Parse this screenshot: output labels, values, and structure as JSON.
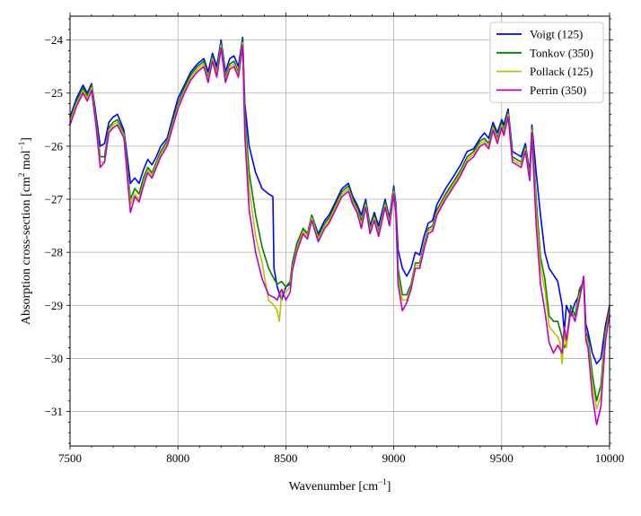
{
  "chart_data": {
    "type": "line",
    "xlabel": "Wavenumber [cm$^{-1}$]",
    "xlabel_parts": {
      "text": "Wavenumber [cm",
      "sup": "−1",
      "tail": "]"
    },
    "ylabel_parts": {
      "text": "Absorption cross-section [cm",
      "sup1": "2",
      "mid": " mol",
      "sup2": "−1",
      "tail": "]"
    },
    "xlim": [
      7500,
      10000
    ],
    "ylim": [
      -31.65,
      -23.55
    ],
    "xticks": [
      7500,
      8000,
      8500,
      9000,
      9500,
      10000
    ],
    "xtick_labels": [
      "7500",
      "8000",
      "8500",
      "9000",
      "9500",
      "10000"
    ],
    "yticks": [
      -31,
      -30,
      -29,
      -28,
      -27,
      -26,
      -25,
      -24
    ],
    "ytick_labels": [
      "−31",
      "−30",
      "−29",
      "−28",
      "−27",
      "−26",
      "−25",
      "−24"
    ],
    "grid": true,
    "legend_position": "top-right",
    "series": [
      {
        "name": "Voigt (125)",
        "color": "#0000ff",
        "x": [
          7500,
          7530,
          7560,
          7580,
          7600,
          7620,
          7640,
          7660,
          7680,
          7700,
          7720,
          7750,
          7780,
          7800,
          7820,
          7840,
          7860,
          7880,
          7900,
          7920,
          7950,
          8000,
          8030,
          8060,
          8090,
          8120,
          8140,
          8160,
          8180,
          8200,
          8220,
          8240,
          8260,
          8280,
          8300,
          8310,
          8330,
          8360,
          8390,
          8420,
          8440,
          8445,
          8460,
          8480,
          8500,
          8520,
          8530,
          8550,
          8580,
          8600,
          8620,
          8650,
          8680,
          8700,
          8730,
          8760,
          8790,
          8810,
          8830,
          8850,
          8870,
          8890,
          8910,
          8930,
          8960,
          8980,
          9000,
          9010,
          9020,
          9040,
          9060,
          9080,
          9100,
          9120,
          9140,
          9160,
          9180,
          9200,
          9240,
          9280,
          9310,
          9340,
          9370,
          9400,
          9420,
          9440,
          9460,
          9480,
          9500,
          9510,
          9530,
          9550,
          9570,
          9590,
          9610,
          9630,
          9640,
          9660,
          9680,
          9700,
          9720,
          9760,
          9780,
          9790,
          9800,
          9820,
          9840,
          9860,
          9880,
          9890,
          9900,
          9920,
          9940,
          9960,
          9980,
          10000
        ],
        "y": [
          -25.45,
          -25.1,
          -24.85,
          -25.0,
          -24.82,
          -25.4,
          -26.0,
          -25.95,
          -25.55,
          -25.45,
          -25.4,
          -25.7,
          -26.7,
          -26.6,
          -26.7,
          -26.45,
          -26.25,
          -26.35,
          -26.2,
          -26.0,
          -25.85,
          -25.1,
          -24.85,
          -24.6,
          -24.45,
          -24.35,
          -24.6,
          -24.25,
          -24.5,
          -24.0,
          -24.6,
          -24.35,
          -24.3,
          -24.5,
          -23.95,
          -25.2,
          -26.0,
          -26.5,
          -26.8,
          -26.9,
          -26.95,
          -28.3,
          -28.65,
          -28.9,
          -28.65,
          -28.6,
          -28.25,
          -27.85,
          -27.55,
          -27.65,
          -27.3,
          -27.65,
          -27.4,
          -27.3,
          -27.05,
          -26.8,
          -26.7,
          -26.95,
          -27.1,
          -27.3,
          -27.0,
          -27.5,
          -27.25,
          -27.5,
          -27.0,
          -27.35,
          -26.75,
          -27.1,
          -27.95,
          -28.3,
          -28.45,
          -28.3,
          -28.0,
          -28.05,
          -27.7,
          -27.45,
          -27.4,
          -27.1,
          -26.8,
          -26.55,
          -26.35,
          -26.1,
          -26.05,
          -25.85,
          -25.75,
          -25.85,
          -25.55,
          -25.75,
          -25.5,
          -25.6,
          -25.3,
          -26.1,
          -26.15,
          -26.2,
          -25.95,
          -26.5,
          -25.6,
          -26.5,
          -27.3,
          -28.0,
          -28.3,
          -28.55,
          -29.0,
          -29.5,
          -29.0,
          -29.2,
          -28.95,
          -28.8,
          -28.5,
          -29.35,
          -29.5,
          -29.9,
          -30.1,
          -30.0,
          -29.4,
          -29.0
        ]
      },
      {
        "name": "Tonkov (350)",
        "color": "#008000",
        "x": [
          7500,
          7530,
          7560,
          7580,
          7600,
          7620,
          7640,
          7660,
          7680,
          7700,
          7720,
          7750,
          7780,
          7800,
          7820,
          7840,
          7860,
          7880,
          7900,
          7920,
          7950,
          8000,
          8030,
          8060,
          8090,
          8120,
          8140,
          8160,
          8180,
          8200,
          8220,
          8240,
          8260,
          8280,
          8300,
          8310,
          8330,
          8360,
          8390,
          8420,
          8445,
          8460,
          8480,
          8500,
          8520,
          8530,
          8550,
          8580,
          8600,
          8620,
          8650,
          8680,
          8700,
          8730,
          8760,
          8790,
          8810,
          8830,
          8850,
          8870,
          8890,
          8910,
          8930,
          8960,
          8980,
          9000,
          9010,
          9020,
          9040,
          9060,
          9080,
          9100,
          9120,
          9140,
          9160,
          9180,
          9200,
          9240,
          9280,
          9310,
          9340,
          9370,
          9400,
          9420,
          9440,
          9460,
          9480,
          9500,
          9510,
          9530,
          9550,
          9570,
          9590,
          9610,
          9630,
          9640,
          9660,
          9680,
          9700,
          9720,
          9740,
          9760,
          9780,
          9790,
          9800,
          9820,
          9840,
          9860,
          9880,
          9890,
          9900,
          9920,
          9940,
          9960,
          9980,
          10000
        ],
        "y": [
          -25.5,
          -25.15,
          -24.9,
          -25.05,
          -24.85,
          -25.5,
          -26.2,
          -26.2,
          -25.65,
          -25.55,
          -25.5,
          -25.75,
          -27.0,
          -26.8,
          -26.9,
          -26.6,
          -26.4,
          -26.5,
          -26.3,
          -26.1,
          -25.9,
          -25.2,
          -24.9,
          -24.65,
          -24.5,
          -24.4,
          -24.7,
          -24.3,
          -24.6,
          -24.05,
          -24.7,
          -24.45,
          -24.4,
          -24.6,
          -24.0,
          -25.4,
          -26.5,
          -27.3,
          -27.9,
          -28.3,
          -28.5,
          -28.6,
          -28.55,
          -28.65,
          -28.55,
          -28.2,
          -27.85,
          -27.55,
          -27.65,
          -27.3,
          -27.7,
          -27.45,
          -27.35,
          -27.1,
          -26.85,
          -26.75,
          -27.0,
          -27.15,
          -27.4,
          -27.05,
          -27.55,
          -27.3,
          -27.6,
          -27.05,
          -27.4,
          -26.8,
          -27.2,
          -28.3,
          -28.8,
          -28.8,
          -28.6,
          -28.2,
          -28.2,
          -27.85,
          -27.55,
          -27.5,
          -27.2,
          -26.9,
          -26.65,
          -26.45,
          -26.2,
          -26.1,
          -25.9,
          -25.85,
          -25.95,
          -25.6,
          -25.85,
          -25.55,
          -25.7,
          -25.35,
          -26.2,
          -26.25,
          -26.3,
          -26.0,
          -26.55,
          -25.65,
          -27.0,
          -28.1,
          -28.5,
          -29.2,
          -29.3,
          -29.3,
          -29.6,
          -29.8,
          -29.7,
          -29.0,
          -29.2,
          -28.7,
          -28.55,
          -29.5,
          -29.6,
          -30.3,
          -30.8,
          -30.5,
          -29.5,
          -29.05
        ]
      },
      {
        "name": "Pollack (125)",
        "color": "#bfbf00",
        "x": [
          7500,
          7530,
          7560,
          7580,
          7600,
          7620,
          7640,
          7660,
          7680,
          7700,
          7720,
          7750,
          7780,
          7800,
          7820,
          7840,
          7860,
          7880,
          7900,
          7920,
          7950,
          8000,
          8030,
          8060,
          8090,
          8120,
          8140,
          8160,
          8180,
          8200,
          8220,
          8240,
          8260,
          8280,
          8300,
          8310,
          8330,
          8360,
          8390,
          8420,
          8445,
          8460,
          8470,
          8480,
          8490,
          8500,
          8520,
          8530,
          8550,
          8580,
          8600,
          8620,
          8650,
          8680,
          8700,
          8730,
          8760,
          8790,
          8810,
          8830,
          8850,
          8870,
          8890,
          8910,
          8930,
          8960,
          8980,
          9000,
          9010,
          9020,
          9040,
          9060,
          9080,
          9100,
          9120,
          9140,
          9160,
          9180,
          9200,
          9240,
          9280,
          9310,
          9340,
          9370,
          9400,
          9420,
          9440,
          9460,
          9480,
          9500,
          9510,
          9530,
          9550,
          9570,
          9590,
          9610,
          9630,
          9640,
          9660,
          9680,
          9700,
          9720,
          9740,
          9760,
          9770,
          9780,
          9790,
          9800,
          9820,
          9840,
          9860,
          9880,
          9890,
          9900,
          9920,
          9940,
          9960,
          9980,
          10000
        ],
        "y": [
          -25.55,
          -25.2,
          -24.95,
          -25.1,
          -24.9,
          -25.55,
          -26.3,
          -26.3,
          -25.7,
          -25.6,
          -25.55,
          -25.8,
          -27.1,
          -26.9,
          -27.0,
          -26.7,
          -26.45,
          -26.55,
          -26.35,
          -26.15,
          -25.95,
          -25.25,
          -24.95,
          -24.7,
          -24.55,
          -24.45,
          -24.75,
          -24.35,
          -24.65,
          -24.1,
          -24.75,
          -24.5,
          -24.45,
          -24.65,
          -24.05,
          -25.6,
          -26.8,
          -27.7,
          -28.2,
          -28.9,
          -29.0,
          -29.1,
          -29.3,
          -28.8,
          -28.7,
          -28.75,
          -28.65,
          -28.3,
          -27.95,
          -27.6,
          -27.7,
          -27.35,
          -27.75,
          -27.5,
          -27.4,
          -27.15,
          -26.9,
          -26.8,
          -27.05,
          -27.2,
          -27.5,
          -27.1,
          -27.6,
          -27.35,
          -27.65,
          -27.1,
          -27.45,
          -26.85,
          -27.25,
          -28.5,
          -28.9,
          -28.9,
          -28.65,
          -28.25,
          -28.25,
          -27.9,
          -27.6,
          -27.55,
          -27.25,
          -26.95,
          -26.7,
          -26.5,
          -26.25,
          -26.15,
          -25.95,
          -25.9,
          -26.0,
          -25.65,
          -25.9,
          -25.6,
          -25.75,
          -25.4,
          -26.25,
          -26.3,
          -26.35,
          -26.05,
          -26.6,
          -25.7,
          -27.2,
          -28.3,
          -28.7,
          -29.4,
          -29.5,
          -29.6,
          -29.7,
          -30.1,
          -29.5,
          -29.8,
          -29.1,
          -29.3,
          -28.8,
          -28.6,
          -29.6,
          -29.7,
          -30.5,
          -30.95,
          -30.7,
          -29.6,
          -29.1
        ]
      },
      {
        "name": "Perrin (350)",
        "color": "#bf00bf",
        "x": [
          7500,
          7530,
          7560,
          7580,
          7600,
          7620,
          7640,
          7660,
          7680,
          7700,
          7720,
          7750,
          7780,
          7800,
          7820,
          7840,
          7860,
          7880,
          7900,
          7920,
          7950,
          8000,
          8030,
          8060,
          8090,
          8120,
          8140,
          8160,
          8180,
          8200,
          8220,
          8240,
          8260,
          8280,
          8300,
          8310,
          8330,
          8360,
          8390,
          8420,
          8445,
          8460,
          8480,
          8500,
          8520,
          8530,
          8550,
          8580,
          8600,
          8620,
          8650,
          8680,
          8700,
          8730,
          8760,
          8790,
          8810,
          8830,
          8850,
          8870,
          8890,
          8910,
          8930,
          8960,
          8980,
          9000,
          9010,
          9020,
          9040,
          9060,
          9080,
          9100,
          9120,
          9140,
          9160,
          9180,
          9200,
          9240,
          9280,
          9310,
          9340,
          9370,
          9400,
          9420,
          9440,
          9460,
          9480,
          9500,
          9510,
          9530,
          9550,
          9570,
          9590,
          9610,
          9630,
          9640,
          9660,
          9680,
          9700,
          9720,
          9740,
          9760,
          9780,
          9790,
          9800,
          9820,
          9840,
          9860,
          9880,
          9890,
          9900,
          9920,
          9940,
          9960,
          9980,
          10000
        ],
        "y": [
          -25.6,
          -25.25,
          -25.0,
          -25.15,
          -24.95,
          -25.6,
          -26.4,
          -26.3,
          -25.75,
          -25.65,
          -25.6,
          -25.85,
          -27.25,
          -26.95,
          -27.05,
          -26.75,
          -26.5,
          -26.6,
          -26.4,
          -26.2,
          -26.0,
          -25.3,
          -25.0,
          -24.75,
          -24.6,
          -24.5,
          -24.8,
          -24.4,
          -24.7,
          -24.15,
          -24.8,
          -24.55,
          -24.5,
          -24.7,
          -24.1,
          -25.8,
          -27.2,
          -28.0,
          -28.5,
          -28.8,
          -28.85,
          -28.9,
          -28.7,
          -28.9,
          -28.75,
          -28.35,
          -28.0,
          -27.65,
          -27.75,
          -27.4,
          -27.8,
          -27.55,
          -27.45,
          -27.2,
          -26.95,
          -26.85,
          -27.1,
          -27.25,
          -27.55,
          -27.15,
          -27.65,
          -27.4,
          -27.7,
          -27.15,
          -27.5,
          -26.9,
          -27.3,
          -28.6,
          -29.1,
          -28.95,
          -28.7,
          -28.3,
          -28.3,
          -27.95,
          -27.65,
          -27.6,
          -27.3,
          -27.0,
          -26.75,
          -26.55,
          -26.3,
          -26.2,
          -26.0,
          -25.95,
          -26.05,
          -25.7,
          -25.95,
          -25.65,
          -25.8,
          -25.45,
          -26.3,
          -26.35,
          -26.4,
          -26.1,
          -26.65,
          -25.75,
          -27.5,
          -28.6,
          -29.1,
          -29.7,
          -29.9,
          -29.75,
          -29.9,
          -29.4,
          -29.65,
          -29.1,
          -29.3,
          -28.9,
          -28.45,
          -29.65,
          -29.8,
          -30.7,
          -31.25,
          -30.9,
          -29.7,
          -29.15
        ]
      }
    ]
  }
}
